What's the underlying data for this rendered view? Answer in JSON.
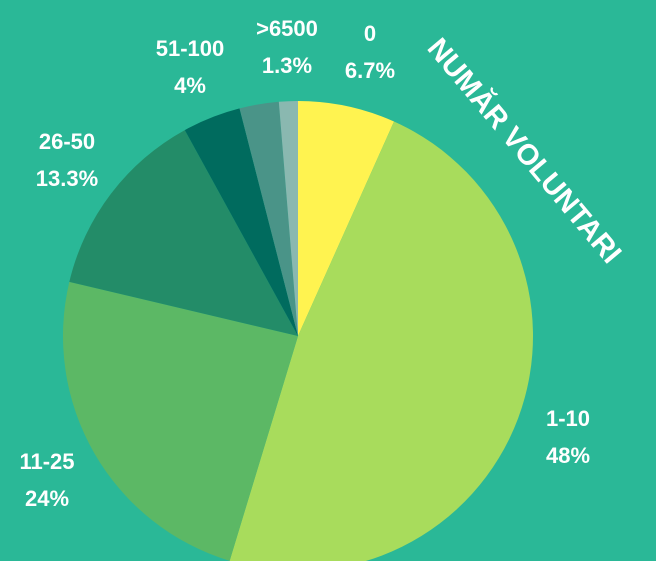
{
  "chart_data": {
    "type": "pie",
    "title": "NUMĂR VOLUNTARI",
    "categories": [
      "0",
      "1-10",
      "11-25",
      "26-50",
      "51-100",
      null,
      ">6500"
    ],
    "values": [
      6.7,
      48,
      24,
      13.3,
      4,
      2.7,
      1.3
    ],
    "value_labels": [
      "6.7%",
      "48%",
      "24%",
      "13.3%",
      "4%",
      null,
      "1.3%"
    ],
    "colors": [
      "#fff350",
      "#a8dc5c",
      "#5cb865",
      "#238c68",
      "#006b5e",
      "#4a9488",
      "#8ab8b0"
    ]
  }
}
